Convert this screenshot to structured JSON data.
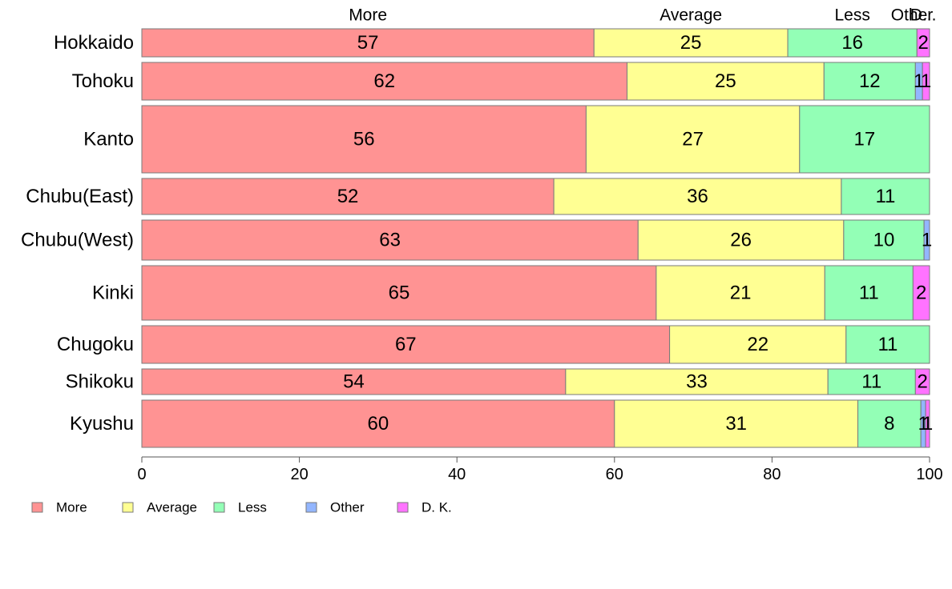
{
  "chart_data": {
    "type": "bar",
    "orientation": "horizontal",
    "stacked": true,
    "categories": [
      "Hokkaido",
      "Tohoku",
      "Kanto",
      "Chubu(East)",
      "Chubu(West)",
      "Kinki",
      "Chugoku",
      "Shikoku",
      "Kyushu"
    ],
    "series": [
      {
        "name": "More",
        "color": "#ff9393",
        "values": [
          57.4,
          61.6,
          56.4,
          52.3,
          63.0,
          65.3,
          67.0,
          53.8,
          60.0
        ]
      },
      {
        "name": "Average",
        "color": "#ffff93",
        "values": [
          24.6,
          25.0,
          27.1,
          36.5,
          26.1,
          21.4,
          22.4,
          33.3,
          30.9
        ]
      },
      {
        "name": "Less",
        "color": "#93ffb6",
        "values": [
          16.4,
          11.6,
          16.5,
          11.2,
          10.2,
          11.2,
          10.6,
          11.1,
          8.0
        ]
      },
      {
        "name": "Other",
        "color": "#93b6ff",
        "values": [
          0.0,
          0.9,
          0.0,
          0.0,
          0.7,
          0.0,
          0.0,
          0.0,
          0.6
        ]
      },
      {
        "name": "D. K.",
        "color": "#ff73ff",
        "values": [
          1.6,
          0.9,
          0.0,
          0.0,
          0.0,
          2.1,
          0.0,
          1.8,
          0.5
        ]
      }
    ],
    "data_labels": [
      [
        "57",
        "25",
        "16",
        "",
        "2"
      ],
      [
        "62",
        "25",
        "12",
        "1",
        "1"
      ],
      [
        "56",
        "27",
        "17",
        "",
        ""
      ],
      [
        "52",
        "36",
        "11",
        "",
        ""
      ],
      [
        "63",
        "26",
        "10",
        "1",
        ""
      ],
      [
        "65",
        "21",
        "11",
        "",
        "2"
      ],
      [
        "67",
        "22",
        "11",
        "",
        ""
      ],
      [
        "54",
        "33",
        "11",
        "",
        "2"
      ],
      [
        "60",
        "31",
        "8",
        "1",
        "1"
      ]
    ],
    "bar_weights": [
      0.35,
      0.47,
      0.84,
      0.45,
      0.5,
      0.68,
      0.47,
      0.32,
      0.59
    ],
    "top_labels": [
      "More",
      "Average",
      "Less",
      "Other",
      "D..."
    ],
    "xlim": [
      0,
      100
    ],
    "xticks": [
      "0",
      "20",
      "40",
      "60",
      "80",
      "100"
    ],
    "legend_position": "bottom-left",
    "grid": false
  }
}
